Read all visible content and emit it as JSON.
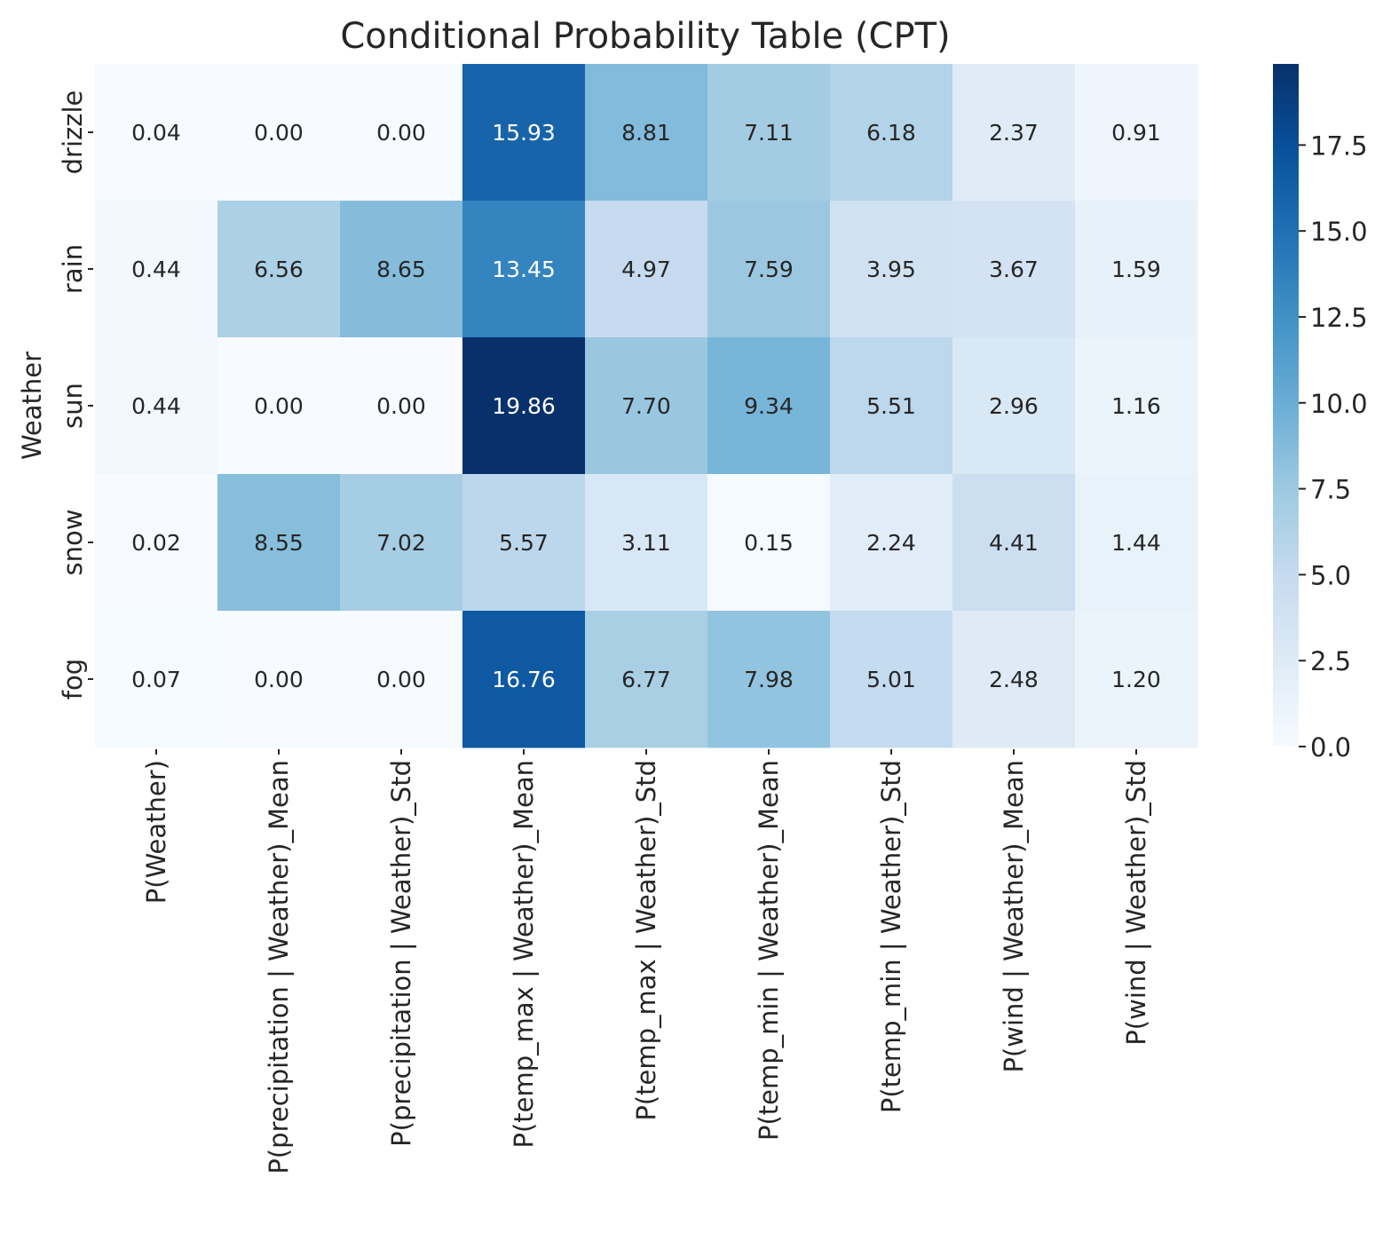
{
  "chart_data": {
    "type": "heatmap",
    "title": "Conditional Probability Table (CPT)",
    "xlabel": "",
    "ylabel": "Weather",
    "rows": [
      "drizzle",
      "rain",
      "sun",
      "snow",
      "fog"
    ],
    "columns": [
      "P(Weather)",
      "P(precipitation | Weather)_Mean",
      "P(precipitation | Weather)_Std",
      "P(temp_max | Weather)_Mean",
      "P(temp_max | Weather)_Std",
      "P(temp_min | Weather)_Mean",
      "P(temp_min | Weather)_Std",
      "P(wind | Weather)_Mean",
      "P(wind | Weather)_Std"
    ],
    "values": [
      [
        0.04,
        0.0,
        0.0,
        15.93,
        8.81,
        7.11,
        6.18,
        2.37,
        0.91
      ],
      [
        0.44,
        6.56,
        8.65,
        13.45,
        4.97,
        7.59,
        3.95,
        3.67,
        1.59
      ],
      [
        0.44,
        0.0,
        0.0,
        19.86,
        7.7,
        9.34,
        5.51,
        2.96,
        1.16
      ],
      [
        0.02,
        8.55,
        7.02,
        5.57,
        3.11,
        0.15,
        2.24,
        4.41,
        1.44
      ],
      [
        0.07,
        0.0,
        0.0,
        16.76,
        6.77,
        7.98,
        5.01,
        2.48,
        1.2
      ]
    ],
    "value_format": "0.00",
    "colormap": "Blues",
    "color_range": [
      0.0,
      19.86
    ],
    "colorbar_ticks": [
      "0.0",
      "2.5",
      "5.0",
      "7.5",
      "10.0",
      "12.5",
      "15.0",
      "17.5"
    ],
    "colorbar_tick_values": [
      0.0,
      2.5,
      5.0,
      7.5,
      10.0,
      12.5,
      15.0,
      17.5
    ],
    "grid": false,
    "colorbar_position": "right"
  }
}
